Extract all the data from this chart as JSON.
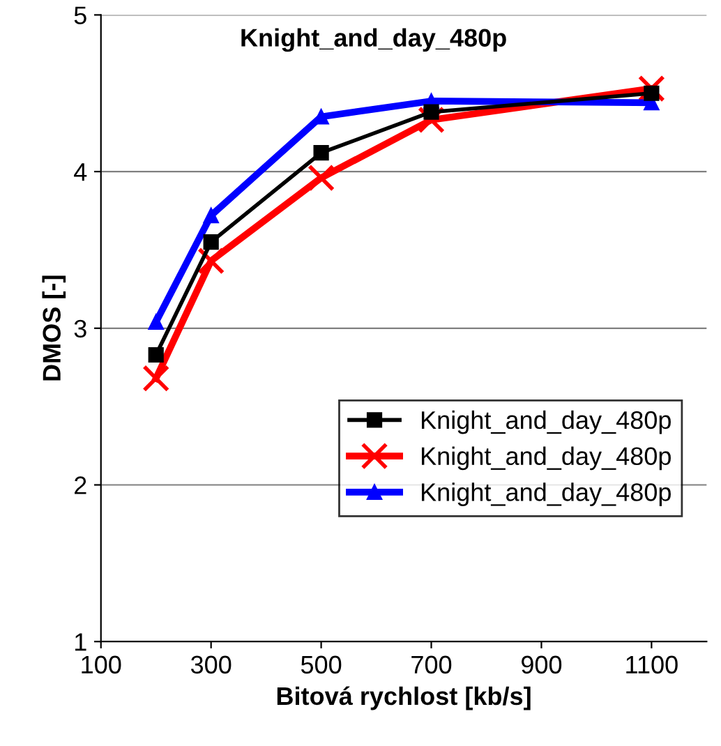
{
  "chart_data": {
    "type": "line",
    "title": "Knight_and_day_480p",
    "xlabel": "Bitová rychlost [kb/s]",
    "ylabel": "DMOS [-]",
    "x": [
      200,
      300,
      500,
      700,
      1100
    ],
    "series": [
      {
        "name": "Knight_and_day_480p",
        "color": "#000000",
        "marker": "square",
        "values": [
          2.83,
          3.55,
          4.12,
          4.38,
          4.5
        ]
      },
      {
        "name": "Knight_and_day_480p",
        "color": "#ff0000",
        "marker": "cross",
        "values": [
          2.68,
          3.43,
          3.96,
          4.33,
          4.53
        ]
      },
      {
        "name": "Knight_and_day_480p",
        "color": "#0000ff",
        "marker": "triangle",
        "values": [
          3.04,
          3.72,
          4.35,
          4.45,
          4.44
        ]
      }
    ],
    "xlim": [
      100,
      1200
    ],
    "xticks": [
      100,
      300,
      500,
      700,
      900,
      1100
    ],
    "ylim": [
      1,
      5
    ],
    "yticks": [
      1,
      2,
      3,
      4,
      5
    ],
    "grid": "y",
    "legend": "bottom right",
    "line_style": "solid"
  }
}
